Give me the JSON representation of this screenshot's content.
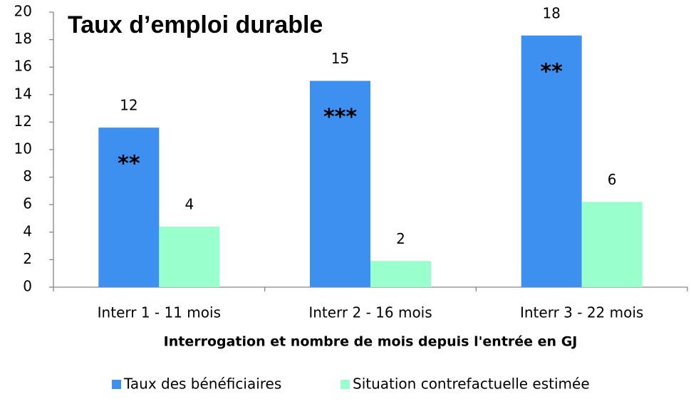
{
  "chart_data": {
    "type": "bar",
    "title": "Taux d’emploi durable",
    "x_label": "Interrogation et nombre de mois depuis l'entrée en GJ",
    "categories": [
      "Interr 1 - 11 mois",
      "Interr 2 - 16 mois",
      "Interr 3 - 22 mois"
    ],
    "series": [
      {
        "name": "Taux des bénéficiaires",
        "color": "#3d8ff0",
        "values": [
          11.6,
          15.0,
          18.3
        ],
        "value_labels": [
          "12",
          "15",
          "18"
        ]
      },
      {
        "name": "Situation contrefactuelle estimée",
        "color": "#99ffcc",
        "values": [
          4.4,
          1.9,
          6.2
        ],
        "value_labels": [
          "4",
          "2",
          "6"
        ]
      }
    ],
    "annotations": [
      "**",
      "***",
      "**"
    ],
    "ylim": [
      0,
      20
    ],
    "yticks": [
      0,
      2,
      4,
      6,
      8,
      10,
      12,
      14,
      16,
      18,
      20
    ],
    "grid": false,
    "legend": "bottom"
  }
}
